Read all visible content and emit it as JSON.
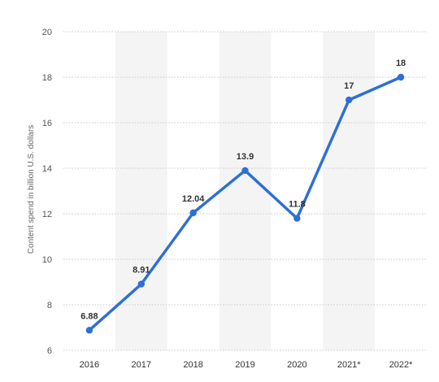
{
  "chart_data": {
    "type": "line",
    "title": "",
    "xlabel": "",
    "ylabel": "Content spend in billion U.S. dollars",
    "categories": [
      "2016",
      "2017",
      "2018",
      "2019",
      "2020",
      "2021*",
      "2022*"
    ],
    "series": [
      {
        "values": [
          6.88,
          8.91,
          12.04,
          13.9,
          11.8,
          17,
          18
        ]
      }
    ],
    "data_labels": [
      "6.88",
      "8.91",
      "12.04",
      "13.9",
      "11.8",
      "17",
      "18"
    ],
    "y_ticks": [
      "6",
      "8",
      "10",
      "12",
      "14",
      "16",
      "18",
      "20"
    ],
    "ylim": [
      6,
      20
    ],
    "grid": true,
    "legend": "none",
    "colors": {
      "line": "#2e6fd6",
      "grid": "#c8c8c8",
      "band": "#f4f4f4"
    }
  }
}
